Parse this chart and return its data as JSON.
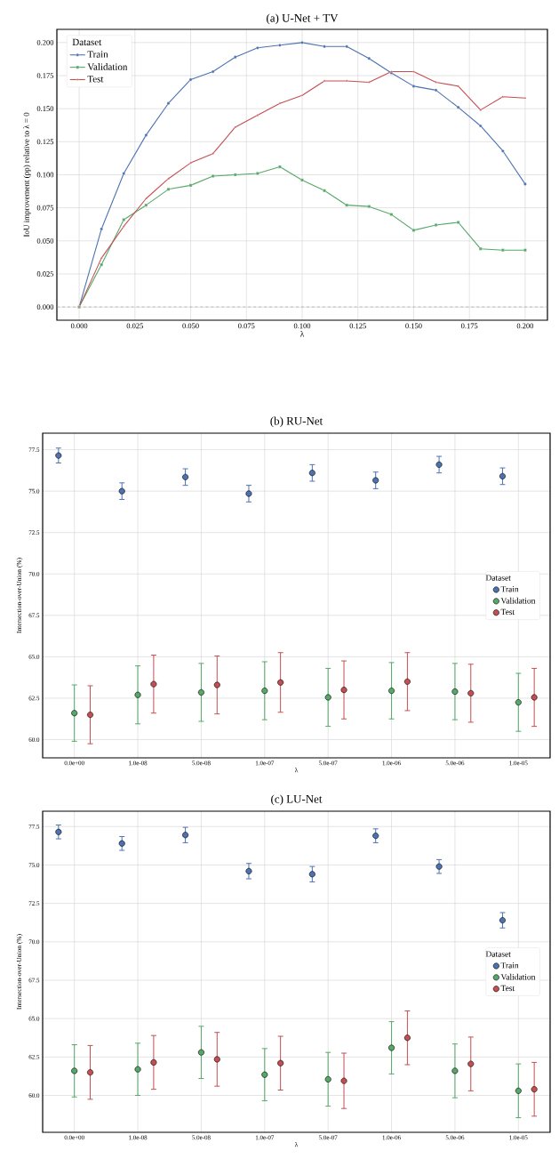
{
  "chart_data": [
    {
      "type": "line",
      "title": "(a) U-Net + TV",
      "xlabel": "λ",
      "ylabel": "IoU improvement (pp) relative to λ = 0",
      "legend_title": "Dataset",
      "x": [
        0.0,
        0.01,
        0.02,
        0.03,
        0.04,
        0.05,
        0.06,
        0.07,
        0.08,
        0.09,
        0.1,
        0.11,
        0.12,
        0.13,
        0.14,
        0.15,
        0.16,
        0.17,
        0.18,
        0.19,
        0.2
      ],
      "series": [
        {
          "name": "Train",
          "color": "#4c72b0",
          "marker": "circle",
          "values": [
            0.0,
            0.059,
            0.101,
            0.13,
            0.154,
            0.172,
            0.178,
            0.189,
            0.196,
            0.198,
            0.2,
            0.197,
            0.197,
            0.188,
            0.177,
            0.167,
            0.164,
            0.151,
            0.137,
            0.118,
            0.093
          ]
        },
        {
          "name": "Validation",
          "color": "#55a868",
          "marker": "square",
          "values": [
            0.0,
            0.032,
            0.066,
            0.077,
            0.089,
            0.092,
            0.099,
            0.1,
            0.101,
            0.106,
            0.096,
            0.088,
            0.077,
            0.076,
            0.07,
            0.058,
            0.062,
            0.064,
            0.044,
            0.043,
            0.043
          ]
        },
        {
          "name": "Test",
          "color": "#c44e52",
          "marker": "triangle",
          "values": [
            0.0,
            0.037,
            0.061,
            0.082,
            0.097,
            0.109,
            0.116,
            0.136,
            0.145,
            0.154,
            0.16,
            0.171,
            0.171,
            0.17,
            0.178,
            0.178,
            0.17,
            0.167,
            0.149,
            0.159,
            0.158
          ]
        }
      ],
      "xlim": [
        -0.01,
        0.21
      ],
      "ylim": [
        -0.01,
        0.21
      ],
      "xticks": [
        {
          "value": 0.0,
          "label": "0.000"
        },
        {
          "value": 0.025,
          "label": "0.025"
        },
        {
          "value": 0.05,
          "label": "0.050"
        },
        {
          "value": 0.075,
          "label": "0.075"
        },
        {
          "value": 0.1,
          "label": "0.100"
        },
        {
          "value": 0.125,
          "label": "0.125"
        },
        {
          "value": 0.15,
          "label": "0.150"
        },
        {
          "value": 0.175,
          "label": "0.175"
        },
        {
          "value": 0.2,
          "label": "0.200"
        }
      ],
      "yticks": [
        {
          "value": 0.0,
          "label": "0.000"
        },
        {
          "value": 0.025,
          "label": "0.025"
        },
        {
          "value": 0.05,
          "label": "0.050"
        },
        {
          "value": 0.075,
          "label": "0.075"
        },
        {
          "value": 0.1,
          "label": "0.100"
        },
        {
          "value": 0.125,
          "label": "0.125"
        },
        {
          "value": 0.15,
          "label": "0.150"
        },
        {
          "value": 0.175,
          "label": "0.175"
        },
        {
          "value": 0.2,
          "label": "0.200"
        }
      ],
      "ref_lines": [
        {
          "axis": "y",
          "value": 0,
          "color": "#999999",
          "line_style": "dashed"
        }
      ],
      "grid": true,
      "legend": "top left",
      "line_style": "solid"
    },
    {
      "type": "scatter",
      "title": "(b) RU-Net",
      "xlabel": "λ",
      "ylabel": "Intersection-over-Union (%)",
      "legend_title": "Dataset",
      "categories": [
        "0.0e+00",
        "1.0e-08",
        "5.0e-08",
        "1.0e-07",
        "5.0e-07",
        "1.0e-06",
        "5.0e-06",
        "1.0e-05"
      ],
      "series": [
        {
          "name": "Train",
          "color": "#4c72b0",
          "values": [
            77.15,
            75.0,
            75.85,
            74.85,
            76.1,
            75.65,
            76.6,
            75.9
          ],
          "errors": [
            0.45,
            0.5,
            0.5,
            0.5,
            0.5,
            0.5,
            0.5,
            0.5
          ]
        },
        {
          "name": "Validation",
          "color": "#55a868",
          "values": [
            61.6,
            62.7,
            62.85,
            62.95,
            62.55,
            62.95,
            62.9,
            62.25
          ],
          "errors": [
            1.7,
            1.75,
            1.75,
            1.75,
            1.75,
            1.7,
            1.7,
            1.75
          ]
        },
        {
          "name": "Test",
          "color": "#c44e52",
          "values": [
            61.5,
            63.35,
            63.3,
            63.45,
            63.0,
            63.5,
            62.8,
            62.55
          ],
          "errors": [
            1.75,
            1.75,
            1.75,
            1.8,
            1.75,
            1.75,
            1.75,
            1.75
          ]
        }
      ],
      "ylim": [
        58.9,
        78.5
      ],
      "yticks": [
        {
          "value": 60,
          "label": "60.0"
        },
        {
          "value": 62.5,
          "label": "62.5"
        },
        {
          "value": 65,
          "label": "65.0"
        },
        {
          "value": 67.5,
          "label": "67.5"
        },
        {
          "value": 70,
          "label": "70.0"
        },
        {
          "value": 72.5,
          "label": "72.5"
        },
        {
          "value": 75,
          "label": "75.0"
        },
        {
          "value": 77.5,
          "label": "77.5"
        }
      ],
      "grid": true,
      "legend": "right"
    },
    {
      "type": "scatter",
      "title": "(c) LU-Net",
      "xlabel": "λ",
      "ylabel": "Intersection-over-Union (%)",
      "legend_title": "Dataset",
      "categories": [
        "0.0e+00",
        "1.0e-08",
        "5.0e-08",
        "1.0e-07",
        "5.0e-07",
        "1.0e-06",
        "5.0e-06",
        "1.0e-05"
      ],
      "series": [
        {
          "name": "Train",
          "color": "#4c72b0",
          "values": [
            77.15,
            76.4,
            76.95,
            74.6,
            74.4,
            76.9,
            74.9,
            71.4
          ],
          "errors": [
            0.45,
            0.45,
            0.5,
            0.5,
            0.5,
            0.45,
            0.45,
            0.5
          ]
        },
        {
          "name": "Validation",
          "color": "#55a868",
          "values": [
            61.6,
            61.7,
            62.8,
            61.35,
            61.05,
            63.1,
            61.6,
            60.3
          ],
          "errors": [
            1.7,
            1.7,
            1.7,
            1.7,
            1.75,
            1.7,
            1.75,
            1.75
          ]
        },
        {
          "name": "Test",
          "color": "#c44e52",
          "values": [
            61.5,
            62.15,
            62.35,
            62.1,
            60.95,
            63.75,
            62.05,
            60.4
          ],
          "errors": [
            1.75,
            1.75,
            1.75,
            1.75,
            1.8,
            1.75,
            1.75,
            1.75
          ]
        }
      ],
      "ylim": [
        57.6,
        78.5
      ],
      "yticks": [
        {
          "value": 60,
          "label": "60.0"
        },
        {
          "value": 62.5,
          "label": "62.5"
        },
        {
          "value": 65,
          "label": "65.0"
        },
        {
          "value": 67.5,
          "label": "67.5"
        },
        {
          "value": 70,
          "label": "70.0"
        },
        {
          "value": 72.5,
          "label": "72.5"
        },
        {
          "value": 75,
          "label": "75.0"
        },
        {
          "value": 77.5,
          "label": "77.5"
        }
      ],
      "grid": true,
      "legend": "right"
    }
  ]
}
